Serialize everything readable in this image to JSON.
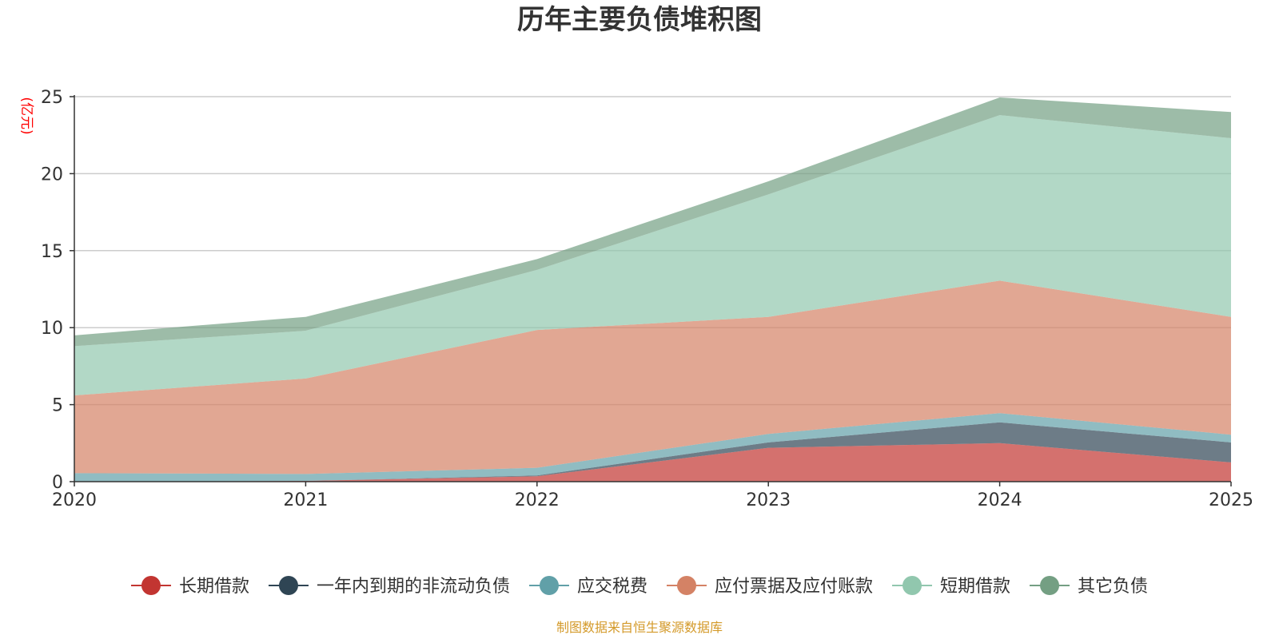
{
  "chart_data": {
    "type": "area",
    "stacked": true,
    "title": "历年主要负债堆积图",
    "ylabel": "(亿元)",
    "xlabel": "",
    "x": [
      "2020",
      "2021",
      "2022",
      "2023",
      "2024",
      "2025"
    ],
    "ylim": [
      0,
      25
    ],
    "yticks": [
      0,
      5,
      10,
      15,
      20,
      25
    ],
    "grid": true,
    "legend_position": "bottom",
    "series": [
      {
        "name": "长期借款",
        "color": "#c23531",
        "values": [
          0.0,
          0.05,
          0.35,
          2.2,
          2.5,
          1.25
        ]
      },
      {
        "name": "一年内到期的非流动负债",
        "color": "#2f4554",
        "values": [
          0.0,
          0.0,
          0.05,
          0.35,
          1.35,
          1.3
        ]
      },
      {
        "name": "应交税费",
        "color": "#61a0a8",
        "values": [
          0.55,
          0.45,
          0.5,
          0.55,
          0.6,
          0.5
        ]
      },
      {
        "name": "应付票据及应付账款",
        "color": "#d48265",
        "values": [
          5.05,
          6.2,
          8.95,
          7.6,
          8.6,
          7.65
        ]
      },
      {
        "name": "短期借款",
        "color": "#91c7ae",
        "values": [
          3.2,
          3.1,
          3.9,
          7.95,
          10.75,
          11.6
        ]
      },
      {
        "name": "其它负债",
        "color": "#749f83",
        "values": [
          0.7,
          0.9,
          0.7,
          0.85,
          1.15,
          1.7
        ]
      }
    ],
    "source": "制图数据来自恒生聚源数据库"
  }
}
